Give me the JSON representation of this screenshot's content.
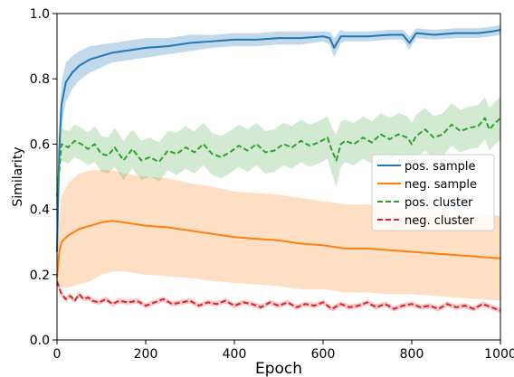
{
  "chart_data": {
    "type": "line",
    "xlabel": "Epoch",
    "ylabel": "Similarity",
    "xlim": [
      0,
      1000
    ],
    "ylim": [
      0.0,
      1.0
    ],
    "xticks": [
      0,
      200,
      400,
      600,
      800,
      1000
    ],
    "yticks": [
      0.0,
      0.2,
      0.4,
      0.6,
      0.8,
      1.0
    ],
    "xtick_labels": [
      "0",
      "200",
      "400",
      "600",
      "800",
      "1000"
    ],
    "ytick_labels": [
      "0.0",
      "0.2",
      "0.4",
      "0.6",
      "0.8",
      "1.0"
    ],
    "grid": false,
    "legend_position": "center-right",
    "series": [
      {
        "name": "pos. sample",
        "color": "#1f77b4",
        "dash": "solid",
        "band": true,
        "x": [
          0,
          5,
          10,
          20,
          35,
          50,
          75,
          100,
          125,
          150,
          175,
          200,
          250,
          300,
          350,
          400,
          450,
          500,
          550,
          600,
          615,
          625,
          640,
          650,
          700,
          750,
          780,
          795,
          810,
          850,
          900,
          950,
          980,
          1000
        ],
        "y": [
          0.27,
          0.58,
          0.72,
          0.79,
          0.82,
          0.84,
          0.86,
          0.87,
          0.88,
          0.885,
          0.89,
          0.895,
          0.9,
          0.91,
          0.915,
          0.92,
          0.92,
          0.925,
          0.925,
          0.93,
          0.925,
          0.895,
          0.93,
          0.93,
          0.93,
          0.935,
          0.935,
          0.91,
          0.94,
          0.935,
          0.94,
          0.94,
          0.945,
          0.95
        ],
        "spread": [
          0.04,
          0.08,
          0.07,
          0.06,
          0.05,
          0.045,
          0.04,
          0.035,
          0.03,
          0.03,
          0.03,
          0.03,
          0.025,
          0.025,
          0.02,
          0.02,
          0.02,
          0.02,
          0.02,
          0.015,
          0.02,
          0.03,
          0.02,
          0.015,
          0.015,
          0.015,
          0.015,
          0.02,
          0.015,
          0.015,
          0.015,
          0.015,
          0.015,
          0.015
        ]
      },
      {
        "name": "neg. sample",
        "color": "#ff7f0e",
        "dash": "solid",
        "band": true,
        "x": [
          0,
          5,
          10,
          25,
          50,
          75,
          100,
          125,
          150,
          175,
          200,
          250,
          300,
          350,
          400,
          450,
          500,
          550,
          600,
          650,
          700,
          750,
          800,
          850,
          900,
          950,
          1000
        ],
        "y": [
          0.19,
          0.27,
          0.3,
          0.32,
          0.34,
          0.35,
          0.36,
          0.365,
          0.36,
          0.355,
          0.35,
          0.345,
          0.335,
          0.325,
          0.315,
          0.31,
          0.305,
          0.295,
          0.29,
          0.28,
          0.28,
          0.275,
          0.27,
          0.265,
          0.26,
          0.255,
          0.25
        ],
        "spread": [
          0.02,
          0.1,
          0.14,
          0.16,
          0.17,
          0.17,
          0.16,
          0.155,
          0.15,
          0.15,
          0.15,
          0.15,
          0.145,
          0.145,
          0.14,
          0.14,
          0.14,
          0.14,
          0.135,
          0.135,
          0.135,
          0.135,
          0.13,
          0.13,
          0.13,
          0.13,
          0.13
        ]
      },
      {
        "name": "pos. cluster",
        "color": "#2ca02c",
        "dash": "dashed",
        "band": true,
        "x": [
          0,
          10,
          25,
          40,
          55,
          70,
          85,
          100,
          115,
          130,
          150,
          170,
          190,
          210,
          230,
          250,
          270,
          290,
          310,
          330,
          350,
          370,
          390,
          410,
          430,
          450,
          470,
          490,
          510,
          530,
          550,
          570,
          590,
          610,
          620,
          630,
          640,
          650,
          670,
          690,
          710,
          730,
          750,
          770,
          790,
          800,
          810,
          830,
          850,
          870,
          890,
          910,
          930,
          950,
          965,
          975,
          985,
          1000
        ],
        "y": [
          0.44,
          0.6,
          0.59,
          0.61,
          0.6,
          0.585,
          0.6,
          0.57,
          0.565,
          0.59,
          0.55,
          0.585,
          0.55,
          0.56,
          0.545,
          0.58,
          0.57,
          0.59,
          0.575,
          0.6,
          0.57,
          0.56,
          0.575,
          0.595,
          0.58,
          0.6,
          0.575,
          0.58,
          0.6,
          0.59,
          0.61,
          0.595,
          0.605,
          0.62,
          0.58,
          0.55,
          0.6,
          0.61,
          0.6,
          0.62,
          0.605,
          0.63,
          0.615,
          0.63,
          0.62,
          0.6,
          0.625,
          0.645,
          0.62,
          0.63,
          0.66,
          0.64,
          0.65,
          0.655,
          0.68,
          0.645,
          0.66,
          0.68
        ],
        "spread": [
          0.02,
          0.05,
          0.05,
          0.05,
          0.05,
          0.05,
          0.055,
          0.055,
          0.055,
          0.06,
          0.06,
          0.06,
          0.06,
          0.06,
          0.06,
          0.06,
          0.065,
          0.065,
          0.065,
          0.065,
          0.065,
          0.065,
          0.065,
          0.065,
          0.065,
          0.065,
          0.065,
          0.065,
          0.065,
          0.065,
          0.065,
          0.065,
          0.065,
          0.065,
          0.07,
          0.08,
          0.07,
          0.065,
          0.065,
          0.065,
          0.065,
          0.065,
          0.065,
          0.065,
          0.065,
          0.065,
          0.065,
          0.065,
          0.065,
          0.065,
          0.065,
          0.065,
          0.065,
          0.065,
          0.065,
          0.065,
          0.065,
          0.065
        ]
      },
      {
        "name": "neg. cluster",
        "color": "#d62728",
        "dash": "dashed",
        "band": true,
        "x": [
          0,
          10,
          20,
          30,
          40,
          50,
          60,
          70,
          80,
          95,
          110,
          125,
          140,
          160,
          180,
          200,
          220,
          240,
          260,
          280,
          300,
          320,
          340,
          360,
          380,
          400,
          420,
          440,
          460,
          480,
          500,
          520,
          540,
          560,
          580,
          600,
          620,
          640,
          660,
          680,
          700,
          720,
          740,
          760,
          780,
          800,
          820,
          840,
          860,
          880,
          900,
          920,
          940,
          960,
          980,
          1000
        ],
        "y": [
          0.18,
          0.14,
          0.125,
          0.135,
          0.12,
          0.14,
          0.125,
          0.13,
          0.12,
          0.115,
          0.125,
          0.11,
          0.12,
          0.115,
          0.12,
          0.105,
          0.115,
          0.125,
          0.11,
          0.115,
          0.12,
          0.105,
          0.115,
          0.11,
          0.12,
          0.105,
          0.115,
          0.11,
          0.1,
          0.115,
          0.105,
          0.115,
          0.1,
          0.11,
          0.105,
          0.115,
          0.095,
          0.11,
          0.1,
          0.105,
          0.115,
          0.1,
          0.11,
          0.095,
          0.105,
          0.11,
          0.1,
          0.105,
          0.095,
          0.11,
          0.1,
          0.105,
          0.095,
          0.11,
          0.1,
          0.09
        ],
        "spread": [
          0.01,
          0.01,
          0.008,
          0.008,
          0.008,
          0.008,
          0.008,
          0.008,
          0.008,
          0.008,
          0.008,
          0.008,
          0.008,
          0.008,
          0.008,
          0.008,
          0.008,
          0.008,
          0.008,
          0.008,
          0.008,
          0.008,
          0.008,
          0.008,
          0.008,
          0.008,
          0.008,
          0.008,
          0.008,
          0.008,
          0.008,
          0.008,
          0.008,
          0.008,
          0.008,
          0.008,
          0.008,
          0.008,
          0.008,
          0.008,
          0.008,
          0.008,
          0.008,
          0.008,
          0.008,
          0.008,
          0.008,
          0.008,
          0.008,
          0.008,
          0.008,
          0.008,
          0.008,
          0.008,
          0.008,
          0.008
        ]
      }
    ]
  }
}
